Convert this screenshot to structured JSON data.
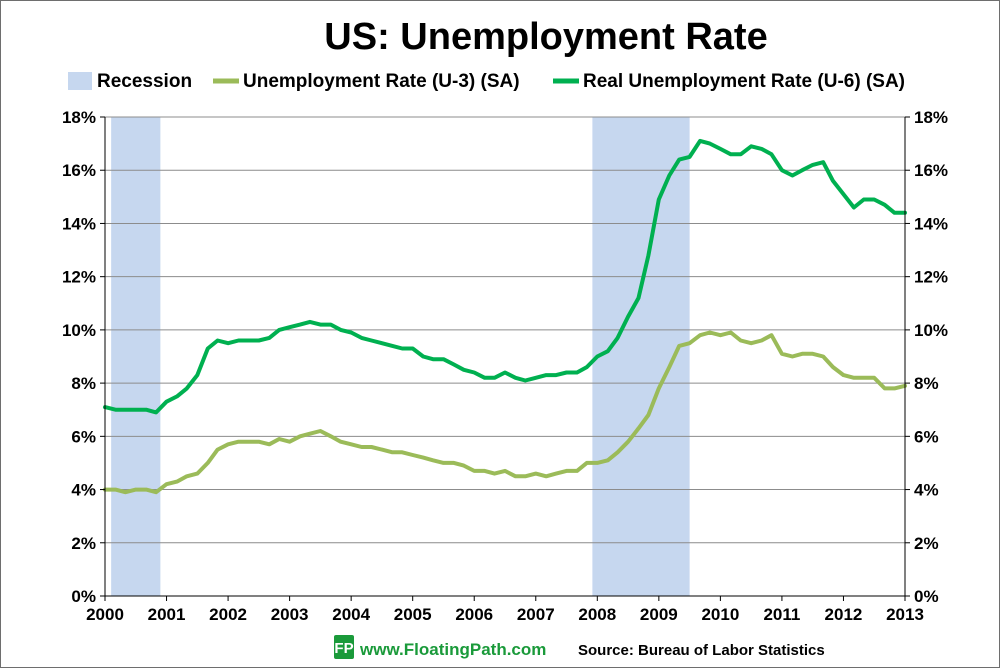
{
  "chart_data": {
    "type": "line",
    "title": "US: Unemployment Rate",
    "legend": {
      "placement": "top",
      "entries": [
        "Recession",
        "Unemployment Rate (U-3) (SA)",
        "Real Unemployment Rate (U-6) (SA)"
      ]
    },
    "x_axis": {
      "range": [
        2000,
        2013
      ],
      "ticks": [
        "2000",
        "2001",
        "2002",
        "2003",
        "2004",
        "2005",
        "2006",
        "2007",
        "2008",
        "2009",
        "2010",
        "2011",
        "2012",
        "2013"
      ]
    },
    "y_axis": {
      "range": [
        0,
        18
      ],
      "ticks": [
        "0%",
        "2%",
        "4%",
        "6%",
        "8%",
        "10%",
        "12%",
        "14%",
        "16%",
        "18%"
      ],
      "secondary_ticks": [
        "0%",
        "2%",
        "4%",
        "6%",
        "8%",
        "10%",
        "12%",
        "14%",
        "16%",
        "18%"
      ]
    },
    "grid": "horizontal",
    "recessions": [
      {
        "start": 2000.1,
        "end": 2000.9
      },
      {
        "start": 2007.92,
        "end": 2009.5
      }
    ],
    "series": [
      {
        "name": "Unemployment Rate (U-3) (SA)",
        "color": "#9bbb59",
        "x": [
          2000.0,
          2000.17,
          2000.33,
          2000.5,
          2000.67,
          2000.83,
          2001.0,
          2001.17,
          2001.33,
          2001.5,
          2001.67,
          2001.83,
          2002.0,
          2002.17,
          2002.33,
          2002.5,
          2002.67,
          2002.83,
          2003.0,
          2003.17,
          2003.33,
          2003.5,
          2003.67,
          2003.83,
          2004.0,
          2004.17,
          2004.33,
          2004.5,
          2004.67,
          2004.83,
          2005.0,
          2005.17,
          2005.33,
          2005.5,
          2005.67,
          2005.83,
          2006.0,
          2006.17,
          2006.33,
          2006.5,
          2006.67,
          2006.83,
          2007.0,
          2007.17,
          2007.33,
          2007.5,
          2007.67,
          2007.83,
          2008.0,
          2008.17,
          2008.33,
          2008.5,
          2008.67,
          2008.83,
          2009.0,
          2009.17,
          2009.33,
          2009.5,
          2009.67,
          2009.83,
          2010.0,
          2010.17,
          2010.33,
          2010.5,
          2010.67,
          2010.83,
          2011.0,
          2011.17,
          2011.33,
          2011.5,
          2011.67,
          2011.83,
          2012.0,
          2012.17,
          2012.33,
          2012.5,
          2012.67,
          2012.83,
          2013.0
        ],
        "values": [
          4.0,
          4.0,
          3.9,
          4.0,
          4.0,
          3.9,
          4.2,
          4.3,
          4.5,
          4.6,
          5.0,
          5.5,
          5.7,
          5.8,
          5.8,
          5.8,
          5.7,
          5.9,
          5.8,
          6.0,
          6.1,
          6.2,
          6.0,
          5.8,
          5.7,
          5.6,
          5.6,
          5.5,
          5.4,
          5.4,
          5.3,
          5.2,
          5.1,
          5.0,
          5.0,
          4.9,
          4.7,
          4.7,
          4.6,
          4.7,
          4.5,
          4.5,
          4.6,
          4.5,
          4.6,
          4.7,
          4.7,
          5.0,
          5.0,
          5.1,
          5.4,
          5.8,
          6.3,
          6.8,
          7.8,
          8.6,
          9.4,
          9.5,
          9.8,
          9.9,
          9.8,
          9.9,
          9.6,
          9.5,
          9.6,
          9.8,
          9.1,
          9.0,
          9.1,
          9.1,
          9.0,
          8.6,
          8.3,
          8.2,
          8.2,
          8.2,
          7.8,
          7.8,
          7.9
        ]
      },
      {
        "name": "Real Unemployment Rate (U-6) (SA)",
        "color": "#00b050",
        "x": [
          2000.0,
          2000.17,
          2000.33,
          2000.5,
          2000.67,
          2000.83,
          2001.0,
          2001.17,
          2001.33,
          2001.5,
          2001.67,
          2001.83,
          2002.0,
          2002.17,
          2002.33,
          2002.5,
          2002.67,
          2002.83,
          2003.0,
          2003.17,
          2003.33,
          2003.5,
          2003.67,
          2003.83,
          2004.0,
          2004.17,
          2004.33,
          2004.5,
          2004.67,
          2004.83,
          2005.0,
          2005.17,
          2005.33,
          2005.5,
          2005.67,
          2005.83,
          2006.0,
          2006.17,
          2006.33,
          2006.5,
          2006.67,
          2006.83,
          2007.0,
          2007.17,
          2007.33,
          2007.5,
          2007.67,
          2007.83,
          2008.0,
          2008.17,
          2008.33,
          2008.5,
          2008.67,
          2008.83,
          2009.0,
          2009.17,
          2009.33,
          2009.5,
          2009.67,
          2009.83,
          2010.0,
          2010.17,
          2010.33,
          2010.5,
          2010.67,
          2010.83,
          2011.0,
          2011.17,
          2011.33,
          2011.5,
          2011.67,
          2011.83,
          2012.0,
          2012.17,
          2012.33,
          2012.5,
          2012.67,
          2012.83,
          2013.0
        ],
        "values": [
          7.1,
          7.0,
          7.0,
          7.0,
          7.0,
          6.9,
          7.3,
          7.5,
          7.8,
          8.3,
          9.3,
          9.6,
          9.5,
          9.6,
          9.6,
          9.6,
          9.7,
          10.0,
          10.1,
          10.2,
          10.3,
          10.2,
          10.2,
          10.0,
          9.9,
          9.7,
          9.6,
          9.5,
          9.4,
          9.3,
          9.3,
          9.0,
          8.9,
          8.9,
          8.7,
          8.5,
          8.4,
          8.2,
          8.2,
          8.4,
          8.2,
          8.1,
          8.2,
          8.3,
          8.3,
          8.4,
          8.4,
          8.6,
          9.0,
          9.2,
          9.7,
          10.5,
          11.2,
          12.8,
          14.9,
          15.8,
          16.4,
          16.5,
          17.1,
          17.0,
          16.8,
          16.6,
          16.6,
          16.9,
          16.8,
          16.6,
          16.0,
          15.8,
          16.0,
          16.2,
          16.3,
          15.6,
          15.1,
          14.6,
          14.9,
          14.9,
          14.7,
          14.4,
          14.4
        ]
      }
    ],
    "footer": {
      "logo_text": "FP",
      "url": "www.FloatingPath.com",
      "source": "Source: Bureau of Labor Statistics"
    }
  },
  "colors": {
    "recession": "#c6d7ef",
    "u3": "#9bbb59",
    "u6": "#00b050",
    "gridline": "#8c8c8c",
    "axis": "#000000"
  }
}
